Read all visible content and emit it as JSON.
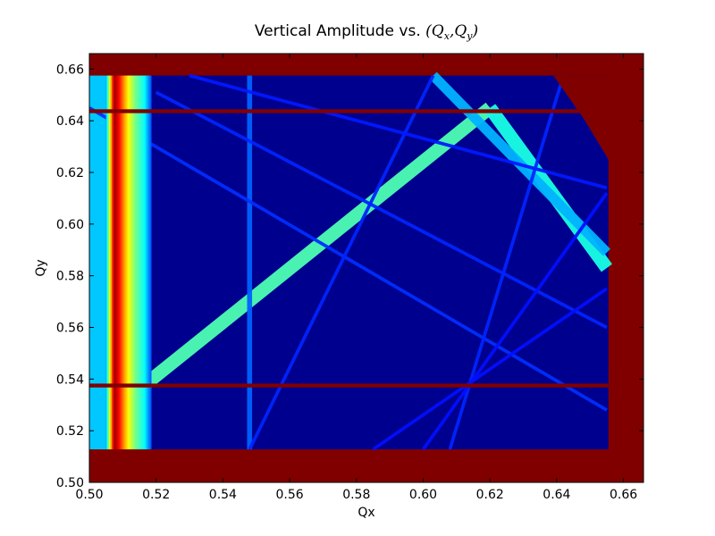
{
  "chart_data": {
    "type": "heatmap",
    "title": "Vertical Amplitude vs. ",
    "title_math": "(Qx,Qy)",
    "title_math_parts": {
      "open": "(",
      "q1": "Q",
      "s1": "x",
      "comma": ",",
      "q2": "Q",
      "s2": "y",
      "close": ")"
    },
    "xlabel": "Qx",
    "ylabel": "Qy",
    "xlim": [
      0.5,
      0.666
    ],
    "ylim": [
      0.5,
      0.666
    ],
    "xticks": [
      "0.50",
      "0.52",
      "0.54",
      "0.56",
      "0.58",
      "0.60",
      "0.62",
      "0.64",
      "0.66"
    ],
    "yticks": [
      "0.50",
      "0.52",
      "0.54",
      "0.56",
      "0.58",
      "0.60",
      "0.62",
      "0.64",
      "0.66"
    ],
    "colormap": "jet",
    "colors": {
      "background_low": "#00008f",
      "saturated": "#800000",
      "ridge": "#1f8fff",
      "ridge_bright": "#40c0ff"
    },
    "data_region": {
      "x": [
        0.5,
        0.6555
      ],
      "y": [
        0.5128,
        0.6575
      ]
    },
    "saturated_bands": [
      {
        "orientation": "horizontal",
        "y": 0.6437,
        "x": [
          0.5,
          0.6555
        ],
        "thickness": 0.0015
      },
      {
        "orientation": "horizontal",
        "y": 0.5375,
        "x": [
          0.5,
          0.6555
        ],
        "thickness": 0.0015
      }
    ],
    "vertical_resonance_band": {
      "x": [
        0.505,
        0.5185
      ],
      "profile": [
        {
          "x": 0.505,
          "level": 0.3
        },
        {
          "x": 0.5075,
          "level": 0.98
        },
        {
          "x": 0.509,
          "level": 0.86
        },
        {
          "x": 0.5105,
          "level": 0.72
        },
        {
          "x": 0.512,
          "level": 0.6
        },
        {
          "x": 0.514,
          "level": 0.48
        },
        {
          "x": 0.5165,
          "level": 0.38
        },
        {
          "x": 0.5185,
          "level": 0.2
        }
      ]
    },
    "resonance_lines": [
      {
        "x1": 0.512,
        "y1": 0.533,
        "x2": 0.62,
        "y2": 0.645,
        "level": 0.45,
        "width": 0.004
      },
      {
        "x1": 0.62,
        "y1": 0.645,
        "x2": 0.655,
        "y2": 0.583,
        "level": 0.4,
        "width": 0.004
      },
      {
        "x1": 0.603,
        "y1": 0.6575,
        "x2": 0.655,
        "y2": 0.589,
        "level": 0.3,
        "width": 0.003
      },
      {
        "x1": 0.548,
        "y1": 0.5128,
        "x2": 0.548,
        "y2": 0.6575,
        "level": 0.22,
        "width": 0.0015
      },
      {
        "x1": 0.5,
        "y1": 0.645,
        "x2": 0.655,
        "y2": 0.528,
        "level": 0.17,
        "width": 0.001
      },
      {
        "x1": 0.52,
        "y1": 0.651,
        "x2": 0.655,
        "y2": 0.56,
        "level": 0.16,
        "width": 0.001
      },
      {
        "x1": 0.603,
        "y1": 0.6575,
        "x2": 0.548,
        "y2": 0.5128,
        "level": 0.16,
        "width": 0.001
      },
      {
        "x1": 0.53,
        "y1": 0.6575,
        "x2": 0.655,
        "y2": 0.614,
        "level": 0.15,
        "width": 0.001
      },
      {
        "x1": 0.608,
        "y1": 0.5128,
        "x2": 0.642,
        "y2": 0.6575,
        "level": 0.16,
        "width": 0.001
      },
      {
        "x1": 0.585,
        "y1": 0.5128,
        "x2": 0.655,
        "y2": 0.575,
        "level": 0.14,
        "width": 0.001
      },
      {
        "x1": 0.6,
        "y1": 0.5128,
        "x2": 0.655,
        "y2": 0.612,
        "level": 0.14,
        "width": 0.001
      }
    ],
    "left_edge_zone": {
      "x": [
        0.5,
        0.505
      ],
      "level": 0.32
    },
    "corner_saturation": {
      "points": [
        [
          0.6555,
          0.625
        ],
        [
          0.648,
          0.641
        ],
        [
          0.639,
          0.6575
        ],
        [
          0.666,
          0.6575
        ],
        [
          0.666,
          0.625
        ]
      ]
    },
    "colorbar": "none"
  }
}
